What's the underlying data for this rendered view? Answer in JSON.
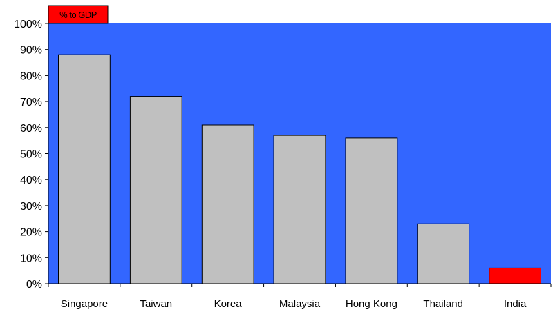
{
  "chart_data": {
    "type": "bar",
    "title": "% to GDP",
    "categories": [
      "Singapore",
      "Taiwan",
      "Korea",
      "Malaysia",
      "Hong Kong",
      "Thailand",
      "India"
    ],
    "values": [
      88,
      72,
      61,
      57,
      56,
      23,
      6
    ],
    "value_unit": "%",
    "ylim": [
      0,
      100
    ],
    "yticks": [
      0,
      10,
      20,
      30,
      40,
      50,
      60,
      70,
      80,
      90,
      100
    ],
    "ytick_labels": [
      "0%",
      "10%",
      "20%",
      "30%",
      "40%",
      "50%",
      "60%",
      "70%",
      "80%",
      "90%",
      "100%"
    ],
    "xlabel": "",
    "ylabel": "",
    "grid": false,
    "legend": "none",
    "colors": {
      "plot_background": "#3366FF",
      "bar": "#C0C0C0",
      "highlight_bar": "#FF0000",
      "title_box": "#FF0000",
      "axis": "#000000"
    },
    "highlight_category": "India"
  }
}
